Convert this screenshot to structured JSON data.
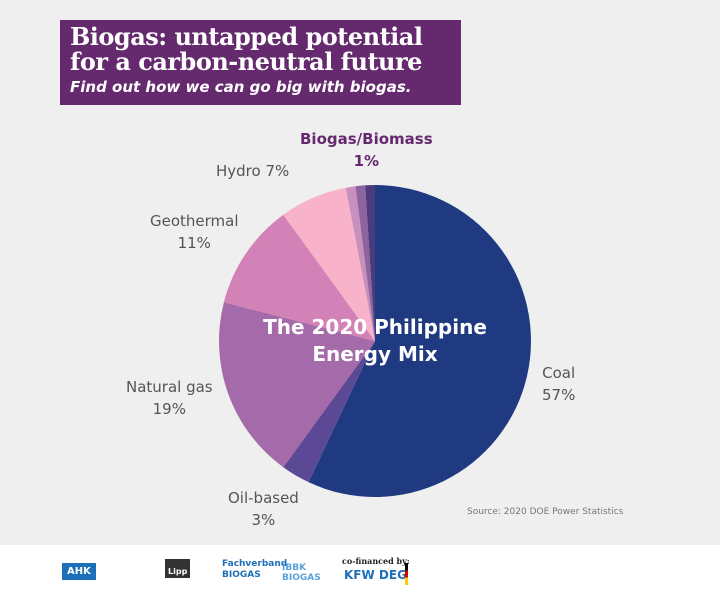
{
  "header": {
    "title_line1": "Biogas: untapped potential",
    "title_line2": "for a carbon-neutral future",
    "subtitle": "Find out how we can go big with biogas."
  },
  "chart_data": {
    "type": "pie",
    "title": "The 2020 Philippine Energy Mix",
    "title_line1": "The 2020 Philippine",
    "title_line2": "Energy Mix",
    "slices": [
      {
        "name": "Coal",
        "label": "57%",
        "value": 57,
        "color": "#1f3a80"
      },
      {
        "name": "Oil-based",
        "label": "3%",
        "value": 3,
        "color": "#5b4996"
      },
      {
        "name": "Natural gas",
        "label": "19%",
        "value": 19,
        "color": "#a56aaa"
      },
      {
        "name": "Geothermal",
        "label": "11%",
        "value": 11,
        "color": "#d282b6"
      },
      {
        "name": "Hydro",
        "label": "7%",
        "value": 7,
        "color": "#f8b2c9"
      },
      {
        "value": 1,
        "color": "#c890bc"
      },
      {
        "value": 1,
        "color": "#8d64a0"
      },
      {
        "name": "Biogas/Biomass",
        "label": "1%",
        "value": 1,
        "color": "#4a3b7c"
      }
    ],
    "hydro_label": "Hydro 7%",
    "source": "Source: 2020 DOE Power Statistics"
  },
  "footer": {
    "cofinanced": "co-financed by:",
    "logos": [
      "AHK",
      "Lipp",
      "Fachverband BIOGAS",
      "IBBK BIOGAS",
      "KFW DEG"
    ]
  }
}
